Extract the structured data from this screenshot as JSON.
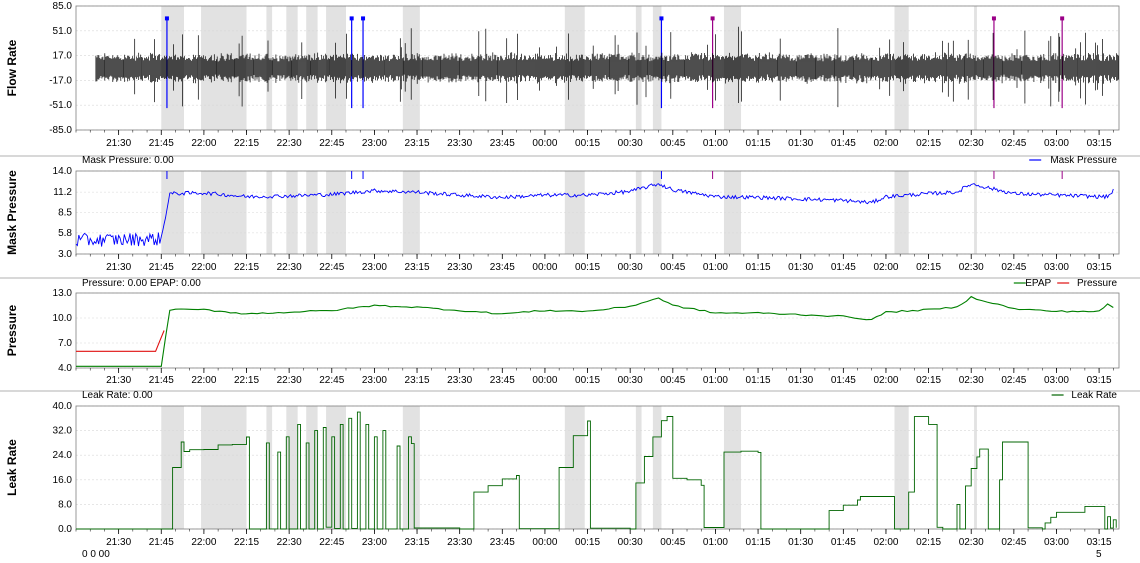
{
  "x_labels": [
    "21:30",
    "21:45",
    "22:00",
    "22:15",
    "22:30",
    "22:45",
    "23:00",
    "23:15",
    "23:30",
    "23:45",
    "00:00",
    "00:15",
    "00:30",
    "00:45",
    "01:00",
    "01:15",
    "01:30",
    "01:45",
    "02:00",
    "02:15",
    "02:30",
    "02:45",
    "03:00",
    "03:15"
  ],
  "corner_fragments": {
    "bottom_left": "0 0 00",
    "bottom_right": "5"
  },
  "chart_data": [
    {
      "type": "line",
      "ylabel": "Flow Rate",
      "header": "",
      "ylim": [
        -85,
        85
      ],
      "y_ticks": [
        "85.0",
        "51.0",
        "17.0",
        "-17.0",
        "-51.0",
        "-85.0"
      ],
      "grid": true,
      "series": [
        {
          "color": "#000000",
          "rendering": "dense-waveform",
          "amplitude_typical": 20,
          "amplitude_spikes": 45
        }
      ],
      "shaded_regions": [
        [
          "21:45",
          "21:53"
        ],
        [
          "21:59",
          "22:15"
        ],
        [
          "22:22",
          "22:24"
        ],
        [
          "22:29",
          "22:33"
        ],
        [
          "22:36",
          "22:40"
        ],
        [
          "22:43",
          "22:50"
        ],
        [
          "23:10",
          "23:16"
        ],
        [
          "00:07",
          "00:14"
        ],
        [
          "00:32",
          "00:34"
        ],
        [
          "00:38",
          "00:41"
        ],
        [
          "01:03",
          "01:09"
        ],
        [
          "02:03",
          "02:08"
        ],
        [
          "02:31",
          "02:32"
        ]
      ],
      "event_markers": [
        {
          "time": "21:47",
          "color": "#0000ff"
        },
        {
          "time": "22:52",
          "color": "#0000ff"
        },
        {
          "time": "22:56",
          "color": "#0000ff"
        },
        {
          "time": "00:41",
          "color": "#0000ff"
        },
        {
          "time": "00:59",
          "color": "#9b0087"
        },
        {
          "time": "02:38",
          "color": "#9b0087"
        },
        {
          "time": "03:02",
          "color": "#9b0087"
        }
      ]
    },
    {
      "type": "line",
      "ylabel": "Mask Pressure",
      "header": "Mask Pressure: 0.00",
      "legend": [
        "Mask Pressure"
      ],
      "legend_position": "top-right",
      "ylim": [
        3.0,
        14.0
      ],
      "y_ticks": [
        "14.0",
        "11.2",
        "8.5",
        "5.8",
        "3.0"
      ],
      "grid": true,
      "series": [
        {
          "name": "Mask Pressure",
          "color": "#0000ff",
          "rendering": "noisy-line",
          "x": [
            "21:15",
            "21:45",
            "21:48",
            "22:00",
            "22:15",
            "22:30",
            "22:45",
            "23:00",
            "23:15",
            "23:30",
            "23:45",
            "00:00",
            "00:15",
            "00:30",
            "00:40",
            "00:45",
            "01:00",
            "01:15",
            "01:30",
            "01:45",
            "01:55",
            "02:00",
            "02:15",
            "02:25",
            "02:30",
            "02:45",
            "03:00",
            "03:15",
            "03:18",
            "03:20"
          ],
          "values": [
            4.8,
            5.0,
            11.0,
            11.1,
            10.6,
            10.7,
            10.9,
            11.4,
            11.2,
            10.8,
            10.5,
            10.8,
            10.8,
            11.3,
            12.3,
            11.5,
            10.6,
            10.5,
            10.3,
            10.1,
            9.8,
            10.6,
            11.0,
            11.2,
            12.3,
            11.0,
            10.8,
            10.6,
            10.6,
            11.4
          ]
        }
      ],
      "shaded_regions": "same as Flow Rate"
    },
    {
      "type": "line",
      "ylabel": "Pressure",
      "header": "Pressure: 0.00 EPAP: 0.00",
      "legend": [
        "EPAP",
        "Pressure"
      ],
      "legend_position": "top-right",
      "ylim": [
        4.0,
        13.0
      ],
      "y_ticks": [
        "13.0",
        "10.0",
        "7.0",
        "4.0"
      ],
      "grid": true,
      "series": [
        {
          "name": "EPAP",
          "color": "#008000",
          "x": [
            "21:15",
            "21:45",
            "21:48",
            "22:00",
            "22:15",
            "22:30",
            "22:45",
            "23:00",
            "23:15",
            "23:30",
            "23:45",
            "00:00",
            "00:15",
            "00:30",
            "00:40",
            "00:45",
            "01:00",
            "01:15",
            "01:30",
            "01:45",
            "01:55",
            "02:00",
            "02:15",
            "02:25",
            "02:30",
            "02:45",
            "03:00",
            "03:15",
            "03:18",
            "03:20"
          ],
          "values": [
            4.2,
            4.2,
            11.0,
            11.0,
            10.5,
            10.7,
            10.9,
            11.5,
            11.3,
            10.9,
            10.5,
            10.9,
            10.8,
            11.4,
            12.4,
            11.5,
            10.6,
            10.6,
            10.4,
            10.2,
            9.8,
            10.7,
            11.0,
            11.3,
            12.5,
            11.1,
            10.8,
            10.8,
            11.6,
            11.3
          ]
        },
        {
          "name": "Pressure",
          "color": "#e01010",
          "x": [
            "21:15",
            "21:43",
            "21:46"
          ],
          "values": [
            6.0,
            6.0,
            8.5
          ]
        }
      ]
    },
    {
      "type": "line",
      "ylabel": "Leak Rate",
      "header": "Leak Rate: 0.00",
      "legend": [
        "Leak Rate"
      ],
      "legend_position": "top-right",
      "ylim": [
        0,
        40
      ],
      "y_ticks": [
        "40.0",
        "32.0",
        "24.0",
        "16.0",
        "8.0",
        "0.0"
      ],
      "grid": true,
      "series": [
        {
          "name": "Leak Rate",
          "color": "#006400",
          "rendering": "step",
          "x": [
            "21:15",
            "21:47",
            "21:49",
            "21:52",
            "21:53",
            "21:55",
            "22:00",
            "22:05",
            "22:10",
            "22:15",
            "22:16",
            "22:22",
            "22:23",
            "22:26",
            "22:27",
            "22:29",
            "22:30",
            "22:33",
            "22:34",
            "22:36",
            "22:37",
            "22:39",
            "22:40",
            "22:42",
            "22:43",
            "22:45",
            "22:46",
            "22:48",
            "22:49",
            "22:51",
            "22:52",
            "22:54",
            "22:55",
            "22:57",
            "22:58",
            "23:00",
            "23:01",
            "23:03",
            "23:04",
            "23:08",
            "23:09",
            "23:12",
            "23:13",
            "23:14",
            "23:30",
            "23:35",
            "23:40",
            "23:45",
            "23:50",
            "23:51",
            "24:05",
            "24:10",
            "24:15",
            "24:16",
            "24:30",
            "24:32",
            "24:35",
            "24:38",
            "24:41",
            "24:43",
            "24:45",
            "24:50",
            "24:55",
            "24:56",
            "25:03",
            "25:09",
            "25:15",
            "25:16",
            "25:30",
            "25:40",
            "25:45",
            "25:50",
            "25:51",
            "26:03",
            "26:08",
            "26:10",
            "26:15",
            "26:18",
            "26:20",
            "26:25",
            "26:26",
            "26:28",
            "26:30",
            "26:32",
            "26:33",
            "26:36",
            "26:38",
            "26:40",
            "26:41",
            "26:50",
            "26:55",
            "26:56",
            "26:58",
            "27:00",
            "27:10",
            "27:17",
            "27:18",
            "27:19",
            "27:20",
            "27:21"
          ],
          "values": [
            0,
            0,
            20,
            28,
            25,
            26,
            26,
            27,
            28,
            30,
            0,
            28,
            0,
            25,
            0,
            30,
            0,
            34,
            0,
            28,
            0,
            32,
            0,
            33,
            0,
            30,
            0,
            34,
            0,
            36,
            0,
            38,
            0,
            34,
            0,
            30,
            0,
            32,
            0,
            27,
            0,
            30,
            28,
            0,
            0,
            12,
            14,
            16,
            17,
            0,
            20,
            30,
            35,
            0,
            0,
            15,
            24,
            30,
            35,
            37,
            16,
            16,
            14,
            0,
            25,
            25,
            25,
            0,
            0,
            6,
            8,
            10,
            11,
            0,
            12,
            36,
            34,
            0,
            0,
            8,
            0,
            14,
            20,
            24,
            26,
            0,
            0,
            16,
            28,
            0,
            0,
            2,
            4,
            6,
            7,
            0,
            4,
            0,
            3,
            0
          ]
        }
      ]
    }
  ]
}
